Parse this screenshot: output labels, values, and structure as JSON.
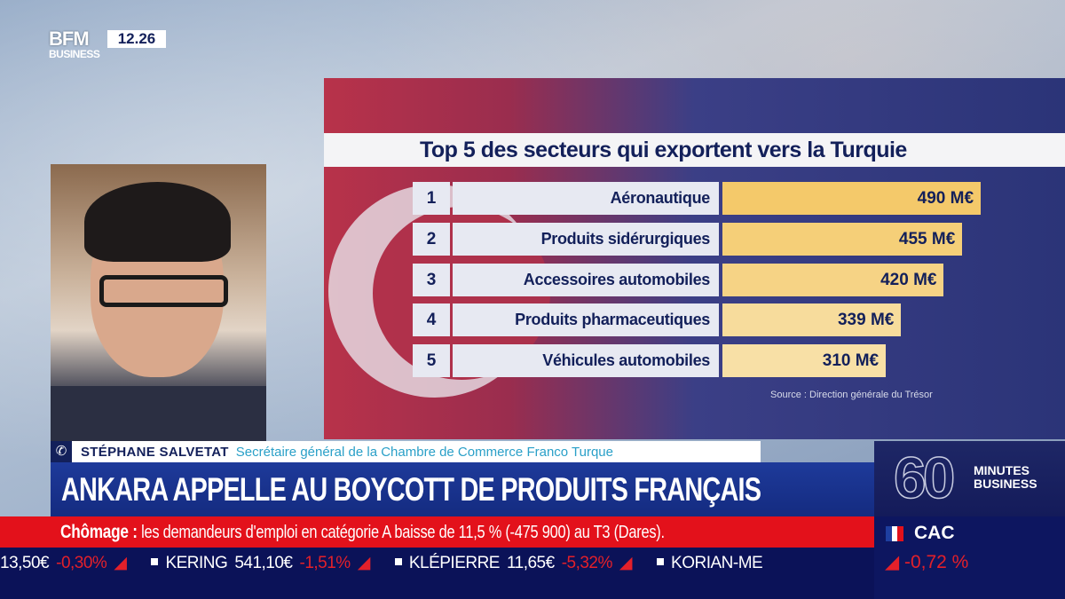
{
  "channel": {
    "logo_line1": "BFM",
    "logo_line2": "BUSINESS",
    "clock": "12.26"
  },
  "chart_data": {
    "type": "bar",
    "title": "Top 5 des secteurs qui exportent vers la Turquie",
    "ranks": [
      "1",
      "2",
      "3",
      "4",
      "5"
    ],
    "categories": [
      "Aéronautique",
      "Produits sidérurgiques",
      "Accessoires automobiles",
      "Produits pharmaceutiques",
      "Véhicules automobiles"
    ],
    "values": [
      490,
      455,
      420,
      339,
      310
    ],
    "value_labels": [
      "490 M€",
      "455 M€",
      "420 M€",
      "339 M€",
      "310 M€"
    ],
    "unit": "M€",
    "orientation": "horizontal",
    "source": "Source : Direction générale du Trésor",
    "bar_colors": [
      "#f4c96a",
      "#f5cf78",
      "#f6d385",
      "#f7dc9c",
      "#f8e0a6"
    ]
  },
  "lower_third": {
    "name": "STÉPHANE SALVETAT",
    "role": "Secrétaire général de la Chambre de Commerce Franco Turque",
    "headline": "ANKARA APPELLE AU BOYCOTT DE PRODUITS FRANÇAIS"
  },
  "news_ticker": {
    "label": "Chômage :",
    "text": "les demandeurs d'emploi en catégorie A baisse de 11,5 % (-475 900) au T3 (Dares)."
  },
  "stock_ticker": [
    {
      "name": "",
      "price": "13,50€",
      "change": "-0,30%"
    },
    {
      "name": "KERING",
      "price": "541,10€",
      "change": "-1,51%"
    },
    {
      "name": "KLÉPIERRE",
      "price": "11,65€",
      "change": "-5,32%"
    },
    {
      "name": "KORIAN-ME",
      "price": "",
      "change": ""
    }
  ],
  "show": {
    "number": "60",
    "line1": "MINUTES",
    "line2": "BUSINESS"
  },
  "index": {
    "name": "CAC",
    "change": "-0,72 %"
  },
  "colors": {
    "navy": "#13205a",
    "red": "#e3111b",
    "bar": "#f4c96a",
    "negative": "#e3202a"
  }
}
